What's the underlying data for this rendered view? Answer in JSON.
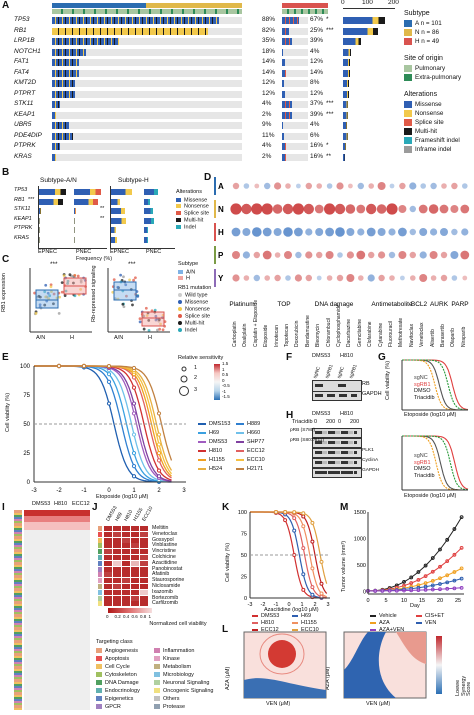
{
  "panels": {
    "A": "A",
    "B": "B",
    "C": "C",
    "D": "D",
    "E": "E",
    "F": "F",
    "G": "G",
    "H": "H",
    "I": "I",
    "J": "J",
    "K": "K",
    "L": "L",
    "M": "M"
  },
  "panelA": {
    "axis_ticks": [
      "0",
      "100",
      "200"
    ],
    "genes": [
      {
        "name": "TP53",
        "p1": "88%",
        "p2": "67%",
        "stars": "*"
      },
      {
        "name": "RB1",
        "p1": "82%",
        "p2": "25%",
        "stars": "***"
      },
      {
        "name": "LRP1B",
        "p1": "35%",
        "p2": "39%",
        "stars": ""
      },
      {
        "name": "NOTCH1",
        "p1": "18%",
        "p2": "4%",
        "stars": ""
      },
      {
        "name": "FAT1",
        "p1": "14%",
        "p2": "12%",
        "stars": ""
      },
      {
        "name": "FAT4",
        "p1": "14%",
        "p2": "14%",
        "stars": ""
      },
      {
        "name": "KMT2D",
        "p1": "12%",
        "p2": "8%",
        "stars": ""
      },
      {
        "name": "PTPRT",
        "p1": "12%",
        "p2": "12%",
        "stars": ""
      },
      {
        "name": "STK11",
        "p1": "4%",
        "p2": "37%",
        "stars": "***"
      },
      {
        "name": "KEAP1",
        "p1": "2%",
        "p2": "39%",
        "stars": "***"
      },
      {
        "name": "UBR5",
        "p1": "9%",
        "p2": "4%",
        "stars": ""
      },
      {
        "name": "PDE4DIP",
        "p1": "11%",
        "p2": "6%",
        "stars": ""
      },
      {
        "name": "PTPRK",
        "p1": "4%",
        "p2": "16%",
        "stars": "*"
      },
      {
        "name": "KRAS",
        "p1": "2%",
        "p2": "16%",
        "stars": "**"
      }
    ],
    "legend": {
      "subtype_title": "Subtype",
      "subtypes": [
        {
          "label": "A n = 101",
          "color": "#2b6cb0"
        },
        {
          "label": "N n = 86",
          "color": "#e0b84a"
        },
        {
          "label": "H n = 49",
          "color": "#d9534f"
        }
      ],
      "site_title": "Site of origin",
      "sites": [
        {
          "label": "Pulmonary",
          "color": "#a8c6a0"
        },
        {
          "label": "Extra-pulmonary",
          "color": "#2e8b57"
        }
      ],
      "alt_title": "Alterations",
      "alterations": [
        {
          "label": "Missense",
          "color": "#2f5fb3"
        },
        {
          "label": "Nonsense",
          "color": "#f2c94c"
        },
        {
          "label": "Splice site",
          "color": "#e05a47"
        },
        {
          "label": "Multi-hit",
          "color": "#1a1a1a"
        },
        {
          "label": "Frameshift indel",
          "color": "#2aa9b8"
        },
        {
          "label": "Inframe indel",
          "color": "#9b9b9b"
        }
      ]
    }
  },
  "panelB": {
    "left_title": "Subtype-A/N",
    "right_title": "Subtype-H",
    "genes": [
      "TP53",
      "RB1",
      "STK11",
      "KEAP1",
      "PTPRK",
      "KRAS"
    ],
    "stars_left": [
      "",
      "***",
      "",
      "",
      "",
      ""
    ],
    "stars_right": [
      "",
      "",
      "**",
      "**",
      "",
      ""
    ],
    "xlabel": "Frequency (%)",
    "left_groups": [
      "EPNEC",
      "PNEC"
    ],
    "right_groups": [
      "EPNEC",
      "PNEC"
    ],
    "legend_title": "Alterations",
    "legend": [
      "Missense",
      "Nonsense",
      "Splice site",
      "Multi-hit",
      "Indel"
    ]
  },
  "panelC": {
    "left_ylabel": "RB1 expression",
    "right_ylabel": "Rb-repressed signaling",
    "xcats": [
      "A/N",
      "H"
    ],
    "sig": "***",
    "legend_subtype": "Subtype",
    "legend_subtypes": [
      "A/N",
      "H"
    ],
    "legend_rb1": "RB1 mutation",
    "legend_rb1_items": [
      "Wild type",
      "Missense",
      "Nonsense",
      "Splice site",
      "Multi-hit",
      "Indel"
    ]
  },
  "panelD": {
    "rows": [
      "A",
      "N",
      "H",
      "P",
      "Y"
    ],
    "drugs": [
      "Carboplatin",
      "Oxaliplatin",
      "Cisplatin + Etoposide",
      "Etoposide",
      "Irinotecan",
      "Topotecan",
      "Doxorubicin",
      "Bendamustine",
      "Bleomycin",
      "Chlorambucil",
      "Cyclophosphamide",
      "Dacarbazine",
      "Gemcitabine",
      "Clofarabine",
      "Cytarabine",
      "Fluorouracil",
      "Methotrexate",
      "Navitoclax",
      "Venetoclax",
      "Alisertib",
      "Barasertib",
      "Olaparib",
      "Niraparib"
    ],
    "groups": [
      "Platinum",
      "TOP",
      "DNA damage",
      "Antimetabolite",
      "BCL2",
      "AURK",
      "PARP"
    ]
  },
  "panelE": {
    "ylabel": "Cell viability (%)",
    "xlabel": "Etoposide (log10 μM)",
    "yticks": [
      "100",
      "75",
      "50",
      "25",
      "0"
    ],
    "xticks": [
      "-3",
      "-2",
      "-1",
      "0",
      "1",
      "2",
      "3"
    ],
    "legend_title": "Relative sensitivity",
    "legend_sizes": [
      "1",
      "2",
      "3"
    ],
    "colorbar": [
      "1.5",
      "1",
      "0.5",
      "0",
      "-0.5",
      "-1",
      "-1.5"
    ],
    "lines": [
      {
        "name": "DMS153",
        "color": "#1f5fb0"
      },
      {
        "name": "H889",
        "color": "#2f7fd0"
      },
      {
        "name": "H69",
        "color": "#3aa0e0"
      },
      {
        "name": "H660",
        "color": "#6fc0ea"
      },
      {
        "name": "DMS53",
        "color": "#a05cc0"
      },
      {
        "name": "SHP77",
        "color": "#8040a0"
      },
      {
        "name": "H810",
        "color": "#d13030"
      },
      {
        "name": "ECC12",
        "color": "#e06060"
      },
      {
        "name": "H1155",
        "color": "#f0a020"
      },
      {
        "name": "ECC10",
        "color": "#f5c040"
      },
      {
        "name": "H524",
        "color": "#e8b040"
      },
      {
        "name": "H2171",
        "color": "#c08040"
      }
    ]
  },
  "panelF": {
    "cols": [
      "DMS53",
      "H810"
    ],
    "subcols": [
      "sgNC",
      "sgRB1",
      "sgNC",
      "sgRB1"
    ],
    "rows": [
      "RB",
      "GAPDH"
    ]
  },
  "panelG": {
    "ylabel": "Cell viability (%)",
    "xlabel": "Etoposide (log10 μM)",
    "top_legend": [
      "sgNC",
      "sgRB1",
      "DMSO",
      "Triacidib"
    ],
    "bottom_legend": [
      "sgNC",
      "sgRB1",
      "DMSO",
      "Triacidib"
    ],
    "yticks": [
      "100",
      "50",
      "0"
    ],
    "xticks": [
      "-3",
      "-2",
      "-1",
      "0",
      "1",
      "2",
      "3"
    ]
  },
  "panelH": {
    "cols": [
      "DMS53",
      "H810"
    ],
    "triacidib_label": "Triacidib",
    "conc": [
      "0",
      "200",
      "0",
      "200"
    ],
    "rows": [
      "pRB (S780)",
      "pRB (S807/811)",
      "PLK1",
      "CyclinA",
      "GAPDH"
    ]
  },
  "panelI": {
    "cols": [
      "DMS53",
      "H810",
      "ECC12"
    ]
  },
  "panelJ": {
    "drugs": [
      "Meltitin",
      "Venetoclax",
      "Gossypol",
      "Vinblastine",
      "Vincristine",
      "Colchicine",
      "Azacitidine",
      "Panobinostat",
      "Afatinib",
      "Staurosporine",
      "Niclosamide",
      "Ixazomib",
      "Bortezomib",
      "Carfilzomib"
    ],
    "cols": [
      "DMS53",
      "H69",
      "H810",
      "H1155",
      "ECC10"
    ],
    "colorbar_ticks": [
      "0",
      "0.2",
      "0.4",
      "0.6",
      "0.8",
      "1"
    ],
    "colorbar_label": "Normalized cell viability",
    "targeting_title": "Targeting class",
    "classes": [
      {
        "label": "Angiogenesis",
        "color": "#e8a07a"
      },
      {
        "label": "Apoptosis",
        "color": "#e85050"
      },
      {
        "label": "Cell Cycle",
        "color": "#f0c060"
      },
      {
        "label": "Cytoskeleton",
        "color": "#a0c060"
      },
      {
        "label": "DNA Damage",
        "color": "#50a060"
      },
      {
        "label": "Endocrinology",
        "color": "#60b0b0"
      },
      {
        "label": "Epigenetics",
        "color": "#6080c0"
      },
      {
        "label": "GPCR",
        "color": "#a080c0"
      },
      {
        "label": "Inflammation",
        "color": "#d080b0"
      },
      {
        "label": "Kinase",
        "color": "#e0a0c0"
      },
      {
        "label": "Metabolism",
        "color": "#c0b080"
      },
      {
        "label": "Microbiology",
        "color": "#80c0e0"
      },
      {
        "label": "Neuronal Signaling",
        "color": "#b0d0a0"
      },
      {
        "label": "Oncogenic Signaling",
        "color": "#f0e080"
      },
      {
        "label": "Others",
        "color": "#c0c0c0"
      },
      {
        "label": "Protease",
        "color": "#90a0b0"
      }
    ]
  },
  "panelK": {
    "ylabel": "Cell viability (%)",
    "xlabel": "Azacitidine (log10 μM)",
    "yticks": [
      "100",
      "75",
      "50",
      "25",
      "0"
    ],
    "xticks": [
      "-3",
      "-2",
      "-1",
      "0",
      "1",
      "2",
      "3"
    ],
    "legend": [
      {
        "name": "DMS53",
        "color": "#d13030"
      },
      {
        "name": "H69",
        "color": "#2f5fb0"
      },
      {
        "name": "H810",
        "color": "#e06060"
      },
      {
        "name": "H1155",
        "color": "#f09060"
      },
      {
        "name": "ECC12",
        "color": "#c02020"
      },
      {
        "name": "ECC10",
        "color": "#e0a040"
      }
    ]
  },
  "panelM": {
    "ylabel": "Tumor volume (mm³)",
    "xlabel": "Day",
    "yticks": [
      "1500",
      "1000",
      "500",
      "0"
    ],
    "xticks": [
      "0",
      "5",
      "10",
      "15",
      "20",
      "25"
    ],
    "legend": [
      {
        "name": "Vehicle",
        "color": "#222222"
      },
      {
        "name": "CIS+ET",
        "color": "#e04040"
      },
      {
        "name": "AZA",
        "color": "#f0a020"
      },
      {
        "name": "VEN",
        "color": "#2f5fb0"
      },
      {
        "name": "AZA+VEN",
        "color": "#9040c0"
      }
    ]
  },
  "panelL": {
    "ylabel": "AZA (μM)",
    "xlabel": "VEN (μM)",
    "colorbar_label": "Loewe Synergy Score"
  }
}
